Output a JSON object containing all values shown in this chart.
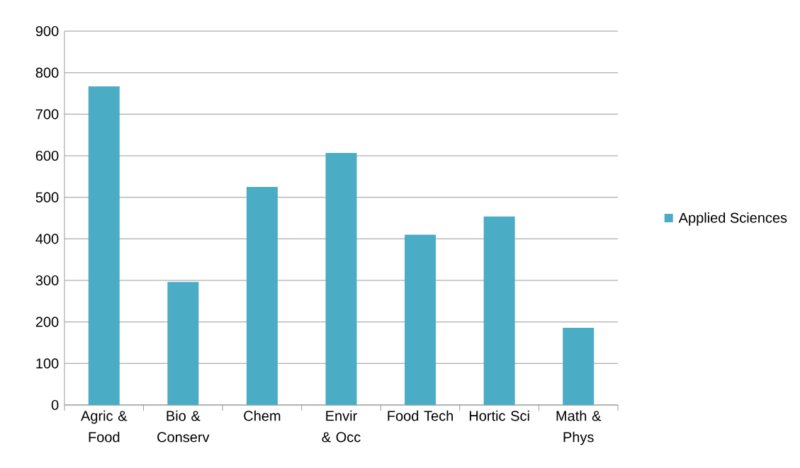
{
  "chart_data": {
    "type": "bar",
    "categories": [
      "Agric & Food",
      "Bio & Conserv",
      "Chem",
      "Envir & Occ",
      "Food Tech",
      "Hortic Sci",
      "Math & Phys"
    ],
    "series": [
      {
        "name": "Applied Sciences",
        "color": "#4bacc6",
        "values": [
          767,
          296,
          525,
          607,
          410,
          454,
          186
        ]
      }
    ],
    "ylim": [
      0,
      900
    ],
    "yticks": [
      0,
      100,
      200,
      300,
      400,
      500,
      600,
      700,
      800,
      900
    ],
    "grid": "y",
    "legend": "right"
  }
}
